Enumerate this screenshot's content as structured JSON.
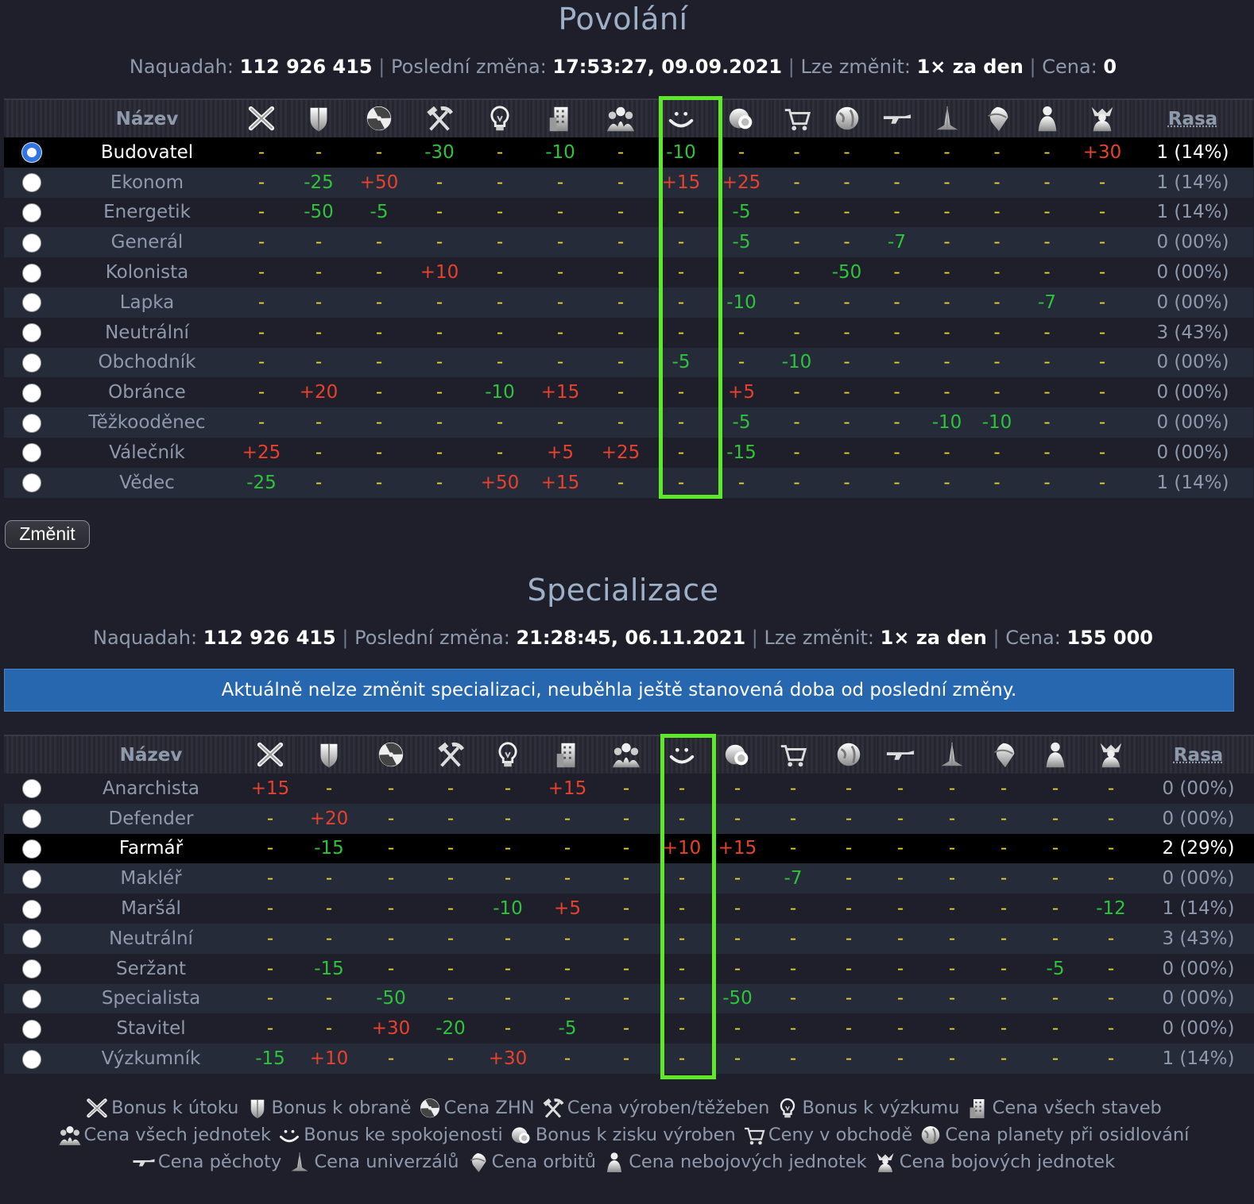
{
  "povolani": {
    "title": "Povolání",
    "info": {
      "naquadah_label": "Naquadah:",
      "naquadah_value": "112 926 415",
      "last_change_label": "Poslední změna:",
      "last_change_value": "17:53:27, 09.09.2021",
      "can_change_label": "Lze změnit:",
      "can_change_value": "1× za den",
      "price_label": "Cena:",
      "price_value": "0"
    },
    "header": {
      "name": "Název",
      "race": "Rasa"
    },
    "rows": [
      {
        "name": "Budovatel",
        "selected": true,
        "active": true,
        "values": [
          "-",
          "-",
          "-",
          "-30",
          "-",
          "-10",
          "-",
          "-10",
          "-",
          "-",
          "-",
          "-",
          "-",
          "-",
          "-",
          "+30"
        ],
        "race": "1 (14%)"
      },
      {
        "name": "Ekonom",
        "values": [
          "-",
          "-25",
          "+50",
          "-",
          "-",
          "-",
          "-",
          "+15",
          "+25",
          "-",
          "-",
          "-",
          "-",
          "-",
          "-",
          "-"
        ],
        "race": "1 (14%)"
      },
      {
        "name": "Energetik",
        "values": [
          "-",
          "-50",
          "-5",
          "-",
          "-",
          "-",
          "-",
          "-",
          "-5",
          "-",
          "-",
          "-",
          "-",
          "-",
          "-",
          "-"
        ],
        "race": "1 (14%)"
      },
      {
        "name": "Generál",
        "values": [
          "-",
          "-",
          "-",
          "-",
          "-",
          "-",
          "-",
          "-",
          "-5",
          "-",
          "-",
          "-7",
          "-",
          "-",
          "-",
          "-"
        ],
        "race": "0 (00%)"
      },
      {
        "name": "Kolonista",
        "values": [
          "-",
          "-",
          "-",
          "+10",
          "-",
          "-",
          "-",
          "-",
          "-",
          "-",
          "-50",
          "-",
          "-",
          "-",
          "-",
          "-"
        ],
        "race": "0 (00%)"
      },
      {
        "name": "Lapka",
        "values": [
          "-",
          "-",
          "-",
          "-",
          "-",
          "-",
          "-",
          "-",
          "-10",
          "-",
          "-",
          "-",
          "-",
          "-",
          "-7",
          "-"
        ],
        "race": "0 (00%)"
      },
      {
        "name": "Neutrální",
        "values": [
          "-",
          "-",
          "-",
          "-",
          "-",
          "-",
          "-",
          "-",
          "-",
          "-",
          "-",
          "-",
          "-",
          "-",
          "-",
          "-"
        ],
        "race": "3 (43%)"
      },
      {
        "name": "Obchodník",
        "values": [
          "-",
          "-",
          "-",
          "-",
          "-",
          "-",
          "-",
          "-5",
          "-",
          "-10",
          "-",
          "-",
          "-",
          "-",
          "-",
          "-"
        ],
        "race": "0 (00%)"
      },
      {
        "name": "Obránce",
        "values": [
          "-",
          "+20",
          "-",
          "-",
          "-10",
          "+15",
          "-",
          "-",
          "+5",
          "-",
          "-",
          "-",
          "-",
          "-",
          "-",
          "-"
        ],
        "race": "0 (00%)"
      },
      {
        "name": "Těžkooděnec",
        "values": [
          "-",
          "-",
          "-",
          "-",
          "-",
          "-",
          "-",
          "-",
          "-5",
          "-",
          "-",
          "-",
          "-10",
          "-10",
          "-",
          "-"
        ],
        "race": "0 (00%)"
      },
      {
        "name": "Válečník",
        "values": [
          "+25",
          "-",
          "-",
          "-",
          "-",
          "+5",
          "+25",
          "-",
          "-15",
          "-",
          "-",
          "-",
          "-",
          "-",
          "-",
          "-"
        ],
        "race": "0 (00%)"
      },
      {
        "name": "Vědec",
        "values": [
          "-25",
          "-",
          "-",
          "-",
          "+50",
          "+15",
          "-",
          "-",
          "-",
          "-",
          "-",
          "-",
          "-",
          "-",
          "-",
          "-"
        ],
        "race": "1 (14%)"
      }
    ],
    "change_button": "Změnit"
  },
  "specializace": {
    "title": "Specializace",
    "info": {
      "naquadah_label": "Naquadah:",
      "naquadah_value": "112 926 415",
      "last_change_label": "Poslední změna:",
      "last_change_value": "21:28:45, 06.11.2021",
      "can_change_label": "Lze změnit:",
      "can_change_value": "1× za den",
      "price_label": "Cena:",
      "price_value": "155 000"
    },
    "notice": "Aktuálně nelze změnit specializaci, neuběhla ještě stanovená doba od poslední změny.",
    "header": {
      "name": "Název",
      "race": "Rasa"
    },
    "rows": [
      {
        "name": "Anarchista",
        "values": [
          "+15",
          "-",
          "-",
          "-",
          "-",
          "+15",
          "-",
          "-",
          "-",
          "-",
          "-",
          "-",
          "-",
          "-",
          "-",
          "-"
        ],
        "race": "0 (00%)"
      },
      {
        "name": "Defender",
        "values": [
          "-",
          "+20",
          "-",
          "-",
          "-",
          "-",
          "-",
          "-",
          "-",
          "-",
          "-",
          "-",
          "-",
          "-",
          "-",
          "-"
        ],
        "race": "0 (00%)"
      },
      {
        "name": "Farmář",
        "active": true,
        "values": [
          "-",
          "-15",
          "-",
          "-",
          "-",
          "-",
          "-",
          "+10",
          "+15",
          "-",
          "-",
          "-",
          "-",
          "-",
          "-",
          "-"
        ],
        "race": "2 (29%)"
      },
      {
        "name": "Makléř",
        "values": [
          "-",
          "-",
          "-",
          "-",
          "-",
          "-",
          "-",
          "-",
          "-",
          "-7",
          "-",
          "-",
          "-",
          "-",
          "-",
          "-"
        ],
        "race": "0 (00%)"
      },
      {
        "name": "Maršál",
        "values": [
          "-",
          "-",
          "-",
          "-",
          "-10",
          "+5",
          "-",
          "-",
          "-",
          "-",
          "-",
          "-",
          "-",
          "-",
          "-",
          "-12"
        ],
        "race": "1 (14%)"
      },
      {
        "name": "Neutrální",
        "values": [
          "-",
          "-",
          "-",
          "-",
          "-",
          "-",
          "-",
          "-",
          "-",
          "-",
          "-",
          "-",
          "-",
          "-",
          "-",
          "-"
        ],
        "race": "3 (43%)"
      },
      {
        "name": "Seržant",
        "values": [
          "-",
          "-15",
          "-",
          "-",
          "-",
          "-",
          "-",
          "-",
          "-",
          "-",
          "-",
          "-",
          "-",
          "-",
          "-5",
          "-"
        ],
        "race": "0 (00%)"
      },
      {
        "name": "Specialista",
        "values": [
          "-",
          "-",
          "-50",
          "-",
          "-",
          "-",
          "-",
          "-",
          "-50",
          "-",
          "-",
          "-",
          "-",
          "-",
          "-",
          "-"
        ],
        "race": "0 (00%)"
      },
      {
        "name": "Stavitel",
        "values": [
          "-",
          "-",
          "+30",
          "-20",
          "-",
          "-5",
          "-",
          "-",
          "-",
          "-",
          "-",
          "-",
          "-",
          "-",
          "-",
          "-"
        ],
        "race": "0 (00%)"
      },
      {
        "name": "Výzkumník",
        "values": [
          "-15",
          "+10",
          "-",
          "-",
          "+30",
          "-",
          "-",
          "-",
          "-",
          "-",
          "-",
          "-",
          "-",
          "-",
          "-",
          "-"
        ],
        "race": "1 (14%)"
      }
    ]
  },
  "columns": [
    {
      "icon": "swords-icon",
      "label": "Bonus k útoku"
    },
    {
      "icon": "shield-icon",
      "label": "Bonus k obraně"
    },
    {
      "icon": "radiation-icon",
      "label": "Cena ZHN"
    },
    {
      "icon": "hammer-pick-icon",
      "label": "Cena výroben/těžeben"
    },
    {
      "icon": "lightbulb-icon",
      "label": "Bonus k výzkumu"
    },
    {
      "icon": "building-icon",
      "label": "Cena všech staveb"
    },
    {
      "icon": "people-icon",
      "label": "Cena všech jednotek"
    },
    {
      "icon": "smile-icon",
      "label": "Bonus ke spokojenosti"
    },
    {
      "icon": "production-icon",
      "label": "Bonus k zisku výroben"
    },
    {
      "icon": "cart-icon",
      "label": "Ceny v obchodě"
    },
    {
      "icon": "planet-icon",
      "label": "Cena planety při osidlování"
    },
    {
      "icon": "rifle-icon",
      "label": "Cena pěchoty"
    },
    {
      "icon": "universal-icon",
      "label": "Cena univerzálů"
    },
    {
      "icon": "orbit-icon",
      "label": "Cena orbitů"
    },
    {
      "icon": "person-icon",
      "label": "Cena nebojových jednotek"
    },
    {
      "icon": "soldier-icon",
      "label": "Cena bojových jednotek"
    }
  ],
  "colors": {
    "negative": "#2ec43a",
    "positive": "#e8412c",
    "neutral": "#e6d22e",
    "highlight": "#5fe82a",
    "notice": "#2667b0"
  }
}
